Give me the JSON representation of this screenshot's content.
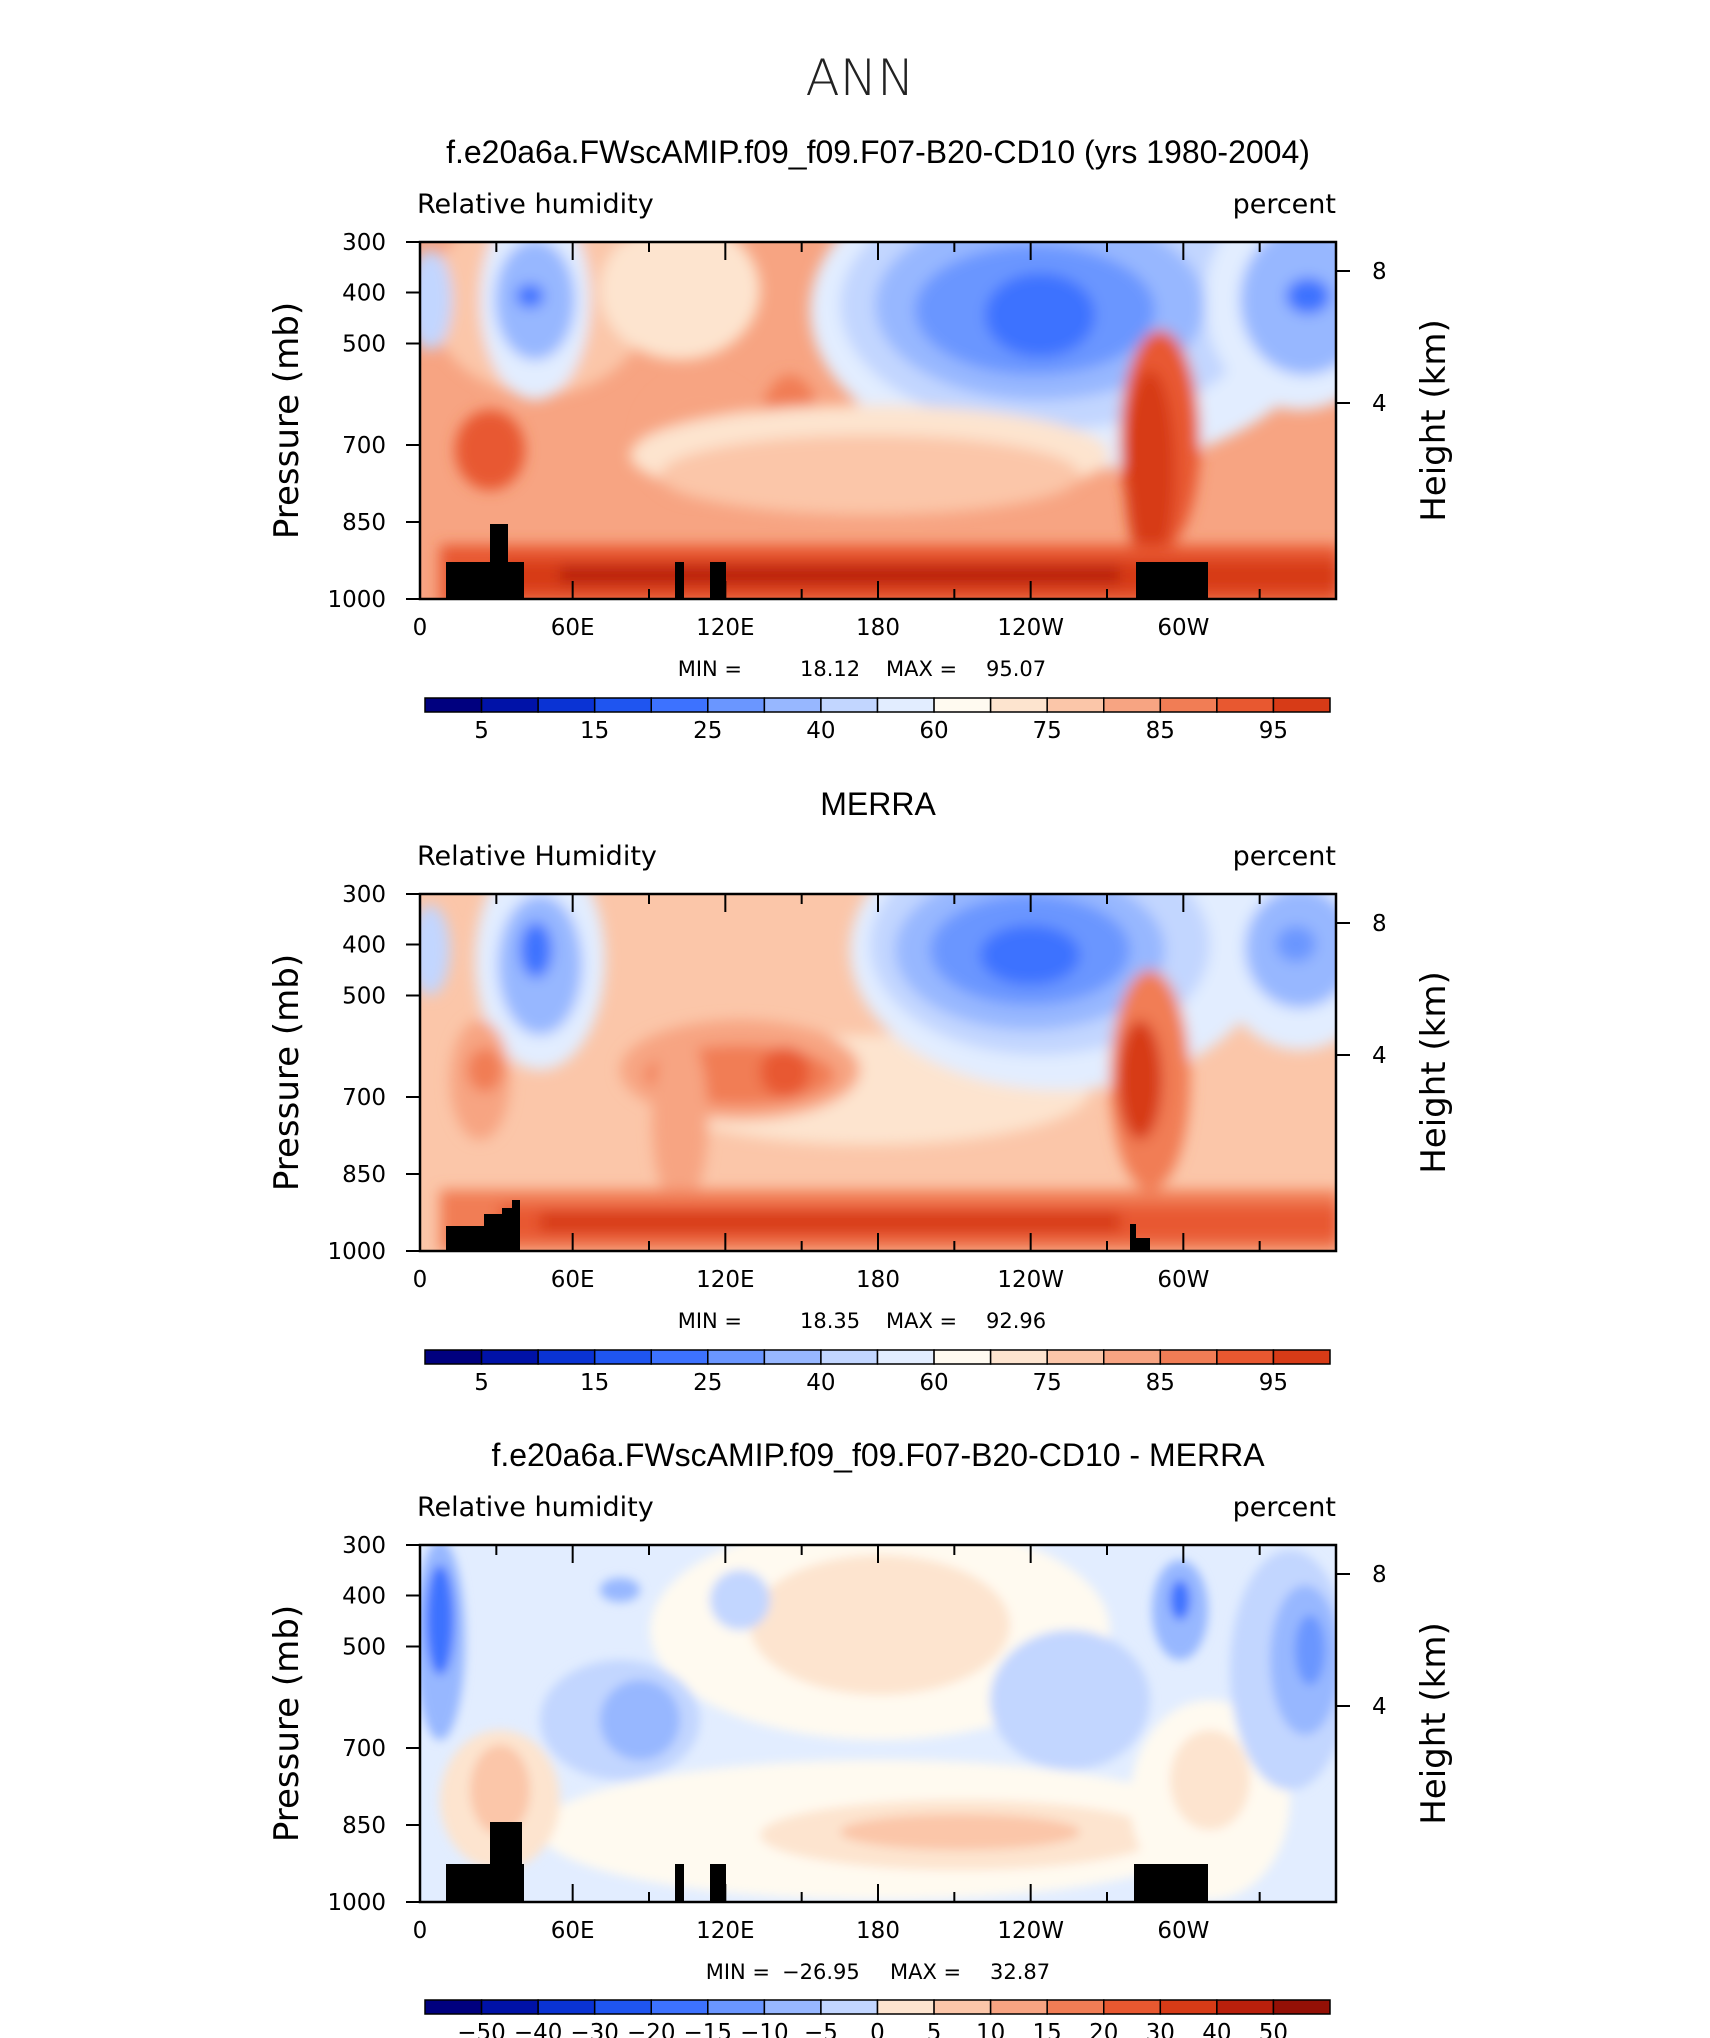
{
  "page_title": "ANN",
  "colors": {
    "blues": [
      "#00007f",
      "#0012a8",
      "#0a33d4",
      "#1f55f0",
      "#3d72ff",
      "#6a96ff",
      "#97b7ff",
      "#c2d6ff",
      "#e2edff"
    ],
    "neutral": "#fffaf0",
    "reds": [
      "#fde4cf",
      "#fbc6a9",
      "#f7a482",
      "#f17d55",
      "#e85830",
      "#d73b17",
      "#ba200c",
      "#941006",
      "#700000"
    ],
    "topography": "#000000"
  },
  "chart_data": [
    {
      "type": "heatmap",
      "title": "f.e20a6a.FWscAMIP.f09_f09.F07-B20-CD10 (yrs 1980-2004)",
      "left_label": "Relative humidity",
      "right_label": "percent",
      "ylabel": "Pressure (mb)",
      "ylabel_right": "Height (km)",
      "x_ticks": [
        "0",
        "60E",
        "120E",
        "180",
        "120W",
        "60W"
      ],
      "y_ticks": [
        "300",
        "400",
        "500",
        "700",
        "850",
        "1000"
      ],
      "y_ticks_right": [
        "8",
        "4"
      ],
      "stats": {
        "min_label": "MIN =",
        "min": "18.12",
        "max_label": "MAX =",
        "max": "95.07"
      },
      "colorbar_labels": [
        "5",
        "15",
        "25",
        "40",
        "60",
        "75",
        "85",
        "95"
      ],
      "ylim": [
        1000,
        300
      ],
      "field": "full"
    },
    {
      "type": "heatmap",
      "title": "MERRA",
      "left_label": "Relative Humidity",
      "right_label": "percent",
      "ylabel": "Pressure (mb)",
      "ylabel_right": "Height (km)",
      "x_ticks": [
        "0",
        "60E",
        "120E",
        "180",
        "120W",
        "60W"
      ],
      "y_ticks": [
        "300",
        "400",
        "500",
        "700",
        "850",
        "1000"
      ],
      "y_ticks_right": [
        "8",
        "4"
      ],
      "stats": {
        "min_label": "MIN =",
        "min": "18.35",
        "max_label": "MAX =",
        "max": "92.96"
      },
      "colorbar_labels": [
        "5",
        "15",
        "25",
        "40",
        "60",
        "75",
        "85",
        "95"
      ],
      "ylim": [
        1000,
        300
      ],
      "field": "full"
    },
    {
      "type": "heatmap",
      "title": "f.e20a6a.FWscAMIP.f09_f09.F07-B20-CD10 - MERRA",
      "left_label": "Relative humidity",
      "right_label": "percent",
      "ylabel": "Pressure (mb)",
      "ylabel_right": "Height (km)",
      "x_ticks": [
        "0",
        "60E",
        "120E",
        "180",
        "120W",
        "60W"
      ],
      "y_ticks": [
        "300",
        "400",
        "500",
        "700",
        "850",
        "1000"
      ],
      "y_ticks_right": [
        "8",
        "4"
      ],
      "stats": {
        "min_label": "MIN =",
        "min": "−26.95",
        "max_label": "MAX =",
        "max": "32.87"
      },
      "colorbar_labels": [
        "−50",
        "−40",
        "−30",
        "−20",
        "−15",
        "−10",
        "−5",
        "0",
        "5",
        "10",
        "15",
        "20",
        "30",
        "40",
        "50"
      ],
      "ylim": [
        1000,
        300
      ],
      "field": "diff"
    }
  ]
}
